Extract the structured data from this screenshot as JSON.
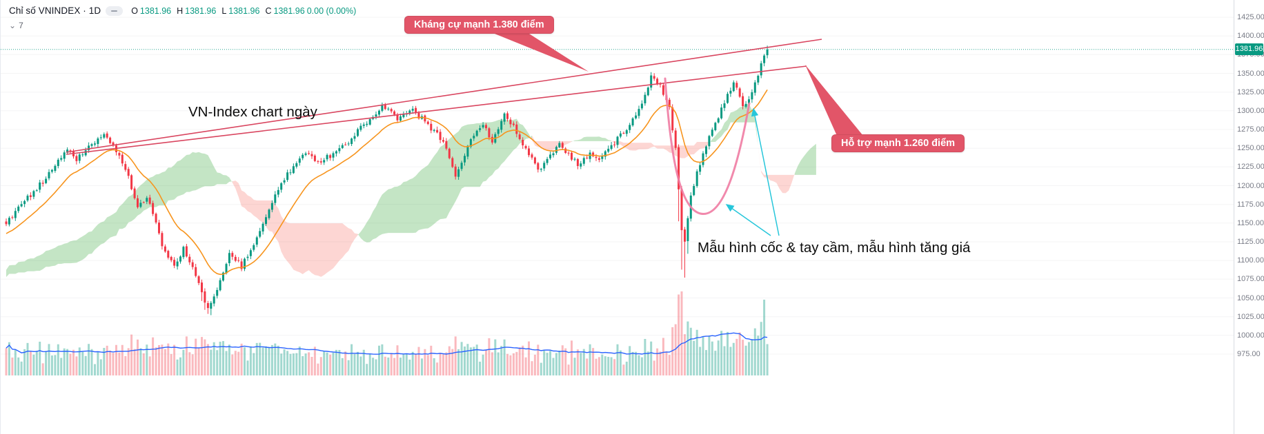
{
  "header": {
    "title": "Chỉ số VNINDEX · 1D",
    "ohlc": {
      "o_label": "O",
      "o": "1381.96",
      "h_label": "H",
      "h": "1381.96",
      "l_label": "L",
      "l": "1381.96",
      "c_label": "C",
      "c": "1381.96",
      "change": "0.00 (0.00%)"
    },
    "indicator_count": "7"
  },
  "annotations": {
    "chart_label": "VN-Index chart ngày",
    "pattern_label": "Mẫu hình cốc & tay cầm, mẫu hình tăng giá",
    "resistance_callout": "Kháng cự mạnh 1.380 điểm",
    "support_callout": "Hỗ trợ mạnh 1.260 điểm"
  },
  "price_axis": {
    "labels": [
      "1425.00",
      "1400.00",
      "1375.00",
      "1350.00",
      "1325.00",
      "1300.00",
      "1275.00",
      "1250.00",
      "1225.00",
      "1200.00",
      "1175.00",
      "1150.00",
      "1125.00",
      "1100.00",
      "1075.00",
      "1050.00",
      "1025.00",
      "1000.00",
      "975.00"
    ],
    "last_price_badge": "1381.96"
  },
  "chart_data": {
    "type": "candlestick",
    "symbol": "VNINDEX",
    "interval": "1D",
    "current": {
      "open": 1381.96,
      "high": 1381.96,
      "low": 1381.96,
      "close": 1381.96,
      "change": "0.00 (0.00%)"
    },
    "key_levels": {
      "resistance": 1380,
      "support": 1260
    },
    "ylim": [
      975,
      1425
    ],
    "y_tick_step": 25,
    "overlays": [
      "ichimoku-cloud",
      "orange-moving-average",
      "volume",
      "volume-ma-blue"
    ],
    "patterns": [
      "rising-wedge-trendlines",
      "cup-and-handle"
    ],
    "close_anchors": [
      [
        0,
        1148
      ],
      [
        4,
        1172
      ],
      [
        8,
        1188
      ],
      [
        13,
        1210
      ],
      [
        20,
        1248
      ],
      [
        23,
        1236
      ],
      [
        27,
        1252
      ],
      [
        32,
        1270
      ],
      [
        36,
        1248
      ],
      [
        40,
        1210
      ],
      [
        43,
        1168
      ],
      [
        46,
        1186
      ],
      [
        51,
        1122
      ],
      [
        55,
        1092
      ],
      [
        58,
        1116
      ],
      [
        62,
        1082
      ],
      [
        66,
        1034
      ],
      [
        69,
        1062
      ],
      [
        73,
        1110
      ],
      [
        77,
        1092
      ],
      [
        82,
        1130
      ],
      [
        87,
        1178
      ],
      [
        92,
        1215
      ],
      [
        98,
        1246
      ],
      [
        102,
        1232
      ],
      [
        107,
        1242
      ],
      [
        112,
        1258
      ],
      [
        117,
        1282
      ],
      [
        123,
        1306
      ],
      [
        128,
        1290
      ],
      [
        133,
        1300
      ],
      [
        138,
        1282
      ],
      [
        143,
        1258
      ],
      [
        147,
        1212
      ],
      [
        150,
        1242
      ],
      [
        152,
        1262
      ],
      [
        156,
        1284
      ],
      [
        159,
        1256
      ],
      [
        163,
        1296
      ],
      [
        167,
        1272
      ],
      [
        171,
        1242
      ],
      [
        174,
        1222
      ],
      [
        178,
        1238
      ],
      [
        181,
        1254
      ],
      [
        184,
        1242
      ],
      [
        187,
        1228
      ],
      [
        191,
        1242
      ],
      [
        194,
        1234
      ],
      [
        197,
        1248
      ],
      [
        200,
        1262
      ],
      [
        204,
        1280
      ],
      [
        208,
        1312
      ],
      [
        211,
        1344
      ],
      [
        214,
        1332
      ],
      [
        217,
        1302
      ],
      [
        219,
        1248
      ],
      [
        220,
        1196
      ],
      [
        221,
        1140
      ],
      [
        222,
        1122
      ],
      [
        223,
        1158
      ],
      [
        224,
        1186
      ],
      [
        226,
        1216
      ],
      [
        228,
        1242
      ],
      [
        230,
        1264
      ],
      [
        232,
        1284
      ],
      [
        234,
        1302
      ],
      [
        236,
        1320
      ],
      [
        238,
        1338
      ],
      [
        240,
        1320
      ],
      [
        241,
        1306
      ],
      [
        243,
        1316
      ],
      [
        245,
        1338
      ],
      [
        247,
        1360
      ],
      [
        248,
        1372
      ],
      [
        249,
        1381.96
      ]
    ]
  },
  "colors": {
    "up": "#089981",
    "down": "#f23645",
    "cloud_up": "rgba(76,175,80,0.33)",
    "cloud_down": "rgba(244,67,54,0.22)",
    "ma": "#f7941d",
    "volume_ma": "#2962ff",
    "vol_up": "rgba(8,153,129,0.38)",
    "vol_down": "rgba(242,54,69,0.35)",
    "trendline": "#d9455f",
    "callout_bg": "#e25568",
    "cup": "#f07ca3",
    "arrow": "#26c6da",
    "axis_text": "#787b86"
  }
}
